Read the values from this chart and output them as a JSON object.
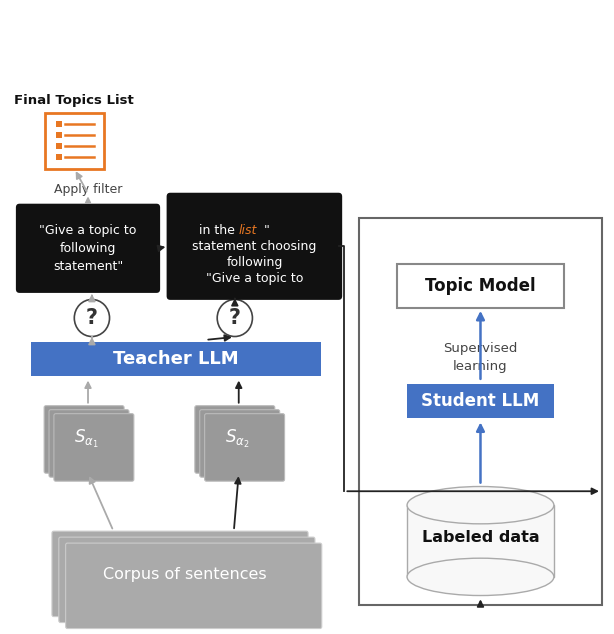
{
  "bg_color": "#ffffff",
  "corpus_color": "#aaaaaa",
  "corpus_text": "Corpus of sentences",
  "corpus_text_color": "#ffffff",
  "stack_color": "#999999",
  "stack_border": "#bbbbbb",
  "teacher_color": "#4472c4",
  "teacher_text": "Teacher LLM",
  "teacher_text_color": "#ffffff",
  "student_color": "#4472c4",
  "student_text": "Student LLM",
  "student_text_color": "#ffffff",
  "topic_model_text": "Topic Model",
  "labeled_data_text": "Labeled data",
  "prompt_bg": "#111111",
  "prompt_text_color": "#ffffff",
  "list_color": "#e87722",
  "apply_filter_text": "Apply filter",
  "supervised_text": "Supervised\nlearning",
  "final_topics_text": "Final Topics List",
  "orange_color": "#e87722",
  "arrow_gray": "#aaaaaa",
  "arrow_blue": "#4472c4",
  "arrow_black": "#222222"
}
